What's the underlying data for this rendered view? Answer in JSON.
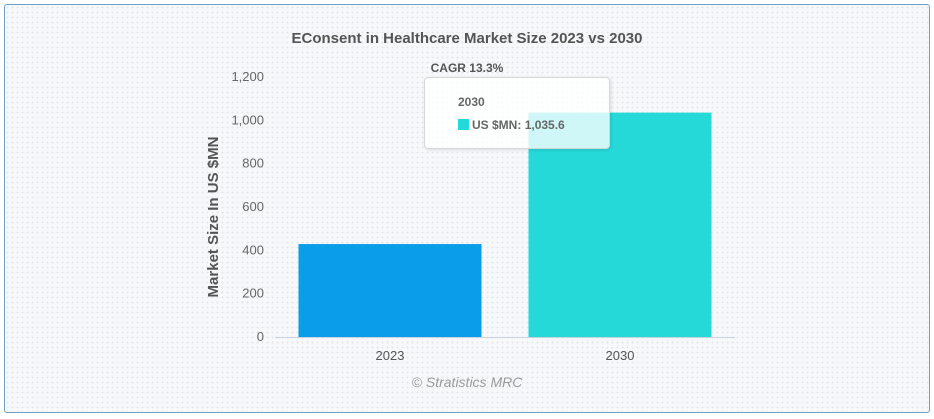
{
  "chart_data": {
    "type": "bar",
    "title": "EConsent in Healthcare Market Size 2023 vs 2030",
    "subtitle": "CAGR 13.3%",
    "categories": [
      "2023",
      "2030"
    ],
    "values": [
      429,
      1035.6
    ],
    "colors": [
      "#0a9eea",
      "#25d9d9"
    ],
    "xlabel": "",
    "ylabel": "Market Size In US $MN",
    "ylim": [
      0,
      1200
    ],
    "yticks": [
      "0",
      "200",
      "400",
      "600",
      "800",
      "1,000",
      "1,200"
    ],
    "grid": false,
    "legend": "none",
    "credits": "© Stratistics MRC",
    "tooltip": {
      "category": "2030",
      "series_label": "US $MN",
      "value_text": "1,035.6",
      "swatch_color": "#25d9d9"
    }
  }
}
